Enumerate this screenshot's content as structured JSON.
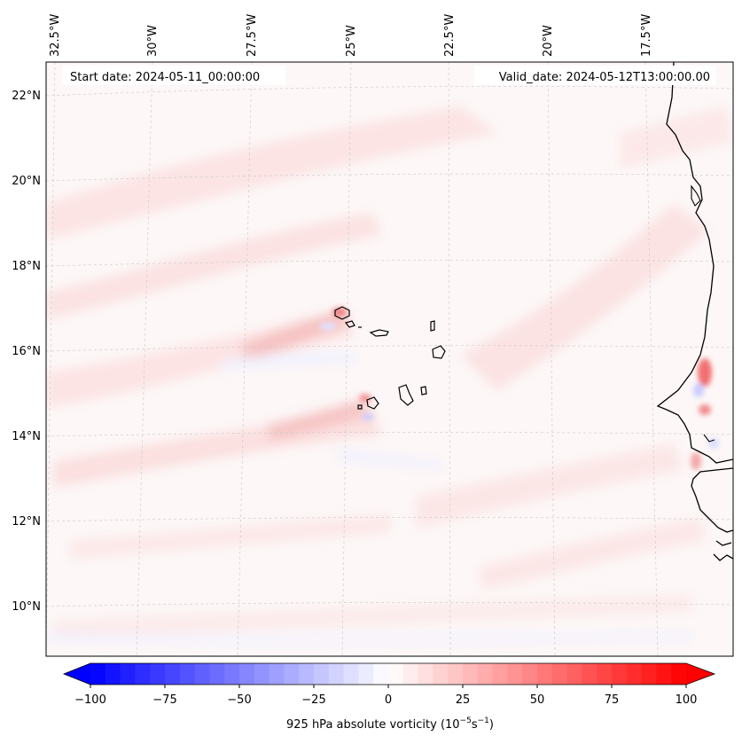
{
  "map": {
    "title_left": "Start date: 2024-05-11_00:00:00",
    "title_right": "Valid_date: 2024-05-12T13:00:00.00",
    "lon_labels": [
      "32.5°W",
      "30°W",
      "27.5°W",
      "25°W",
      "22.5°W",
      "20°W",
      "17.5°W"
    ],
    "lat_labels": [
      "22°N",
      "20°N",
      "18°N",
      "16°N",
      "14°N",
      "12°N",
      "10°N"
    ],
    "colors": {
      "background": "#fdf7f7",
      "negative": "#0000ff",
      "positive": "#ff0000",
      "coast": "#000000"
    }
  },
  "colorbar": {
    "ticks": [
      "−100",
      "−75",
      "−50",
      "−25",
      "0",
      "25",
      "50",
      "75",
      "100"
    ],
    "min": -100,
    "max": 100,
    "steps": 40,
    "label_main": "925 hPa absolute vorticity (10",
    "label_exp1": "−5",
    "label_mid": "s",
    "label_exp2": "−1",
    "label_end": ")"
  }
}
